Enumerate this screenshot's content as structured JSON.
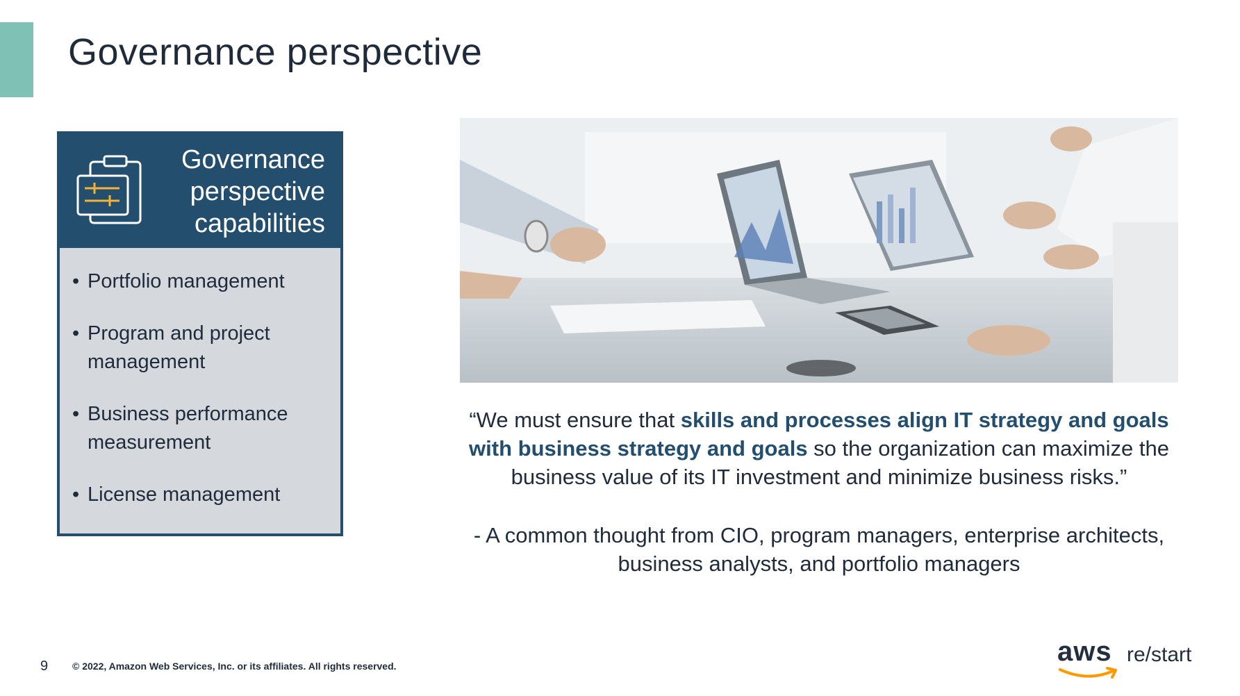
{
  "slide": {
    "title": "Governance perspective",
    "number": "9",
    "copyright": "© 2022, Amazon Web Services, Inc. or its affiliates. All rights reserved."
  },
  "card": {
    "heading_lines": [
      "Governance",
      "perspective",
      "capabilities"
    ],
    "icon": "clipboard-icon",
    "items": [
      {
        "bullet": "•",
        "text": "Portfolio management"
      },
      {
        "bullet": "•",
        "text": "Program and project management"
      },
      {
        "bullet": "•",
        "text": "Business performance measurement"
      },
      {
        "bullet": "•",
        "text": "License management"
      }
    ]
  },
  "quote": {
    "open": "“We must ensure that ",
    "highlight": "skills and processes align IT strategy and goals with business strategy and goals",
    "close": " so the organization can maximize the business value of its IT investment and minimize business risks.”",
    "attribution": "- A common thought from CIO, program managers, enterprise architects, business analysts, and portfolio managers"
  },
  "photo": {
    "icon": "business-meeting-photo"
  },
  "brand": {
    "logo_text": "aws",
    "product": "re/start"
  },
  "colors": {
    "accent": "#7fc1b5",
    "card_header": "#234e6e",
    "card_body": "#d5d9de",
    "highlight_text": "#234e6e",
    "aws_orange": "#ff9900"
  }
}
